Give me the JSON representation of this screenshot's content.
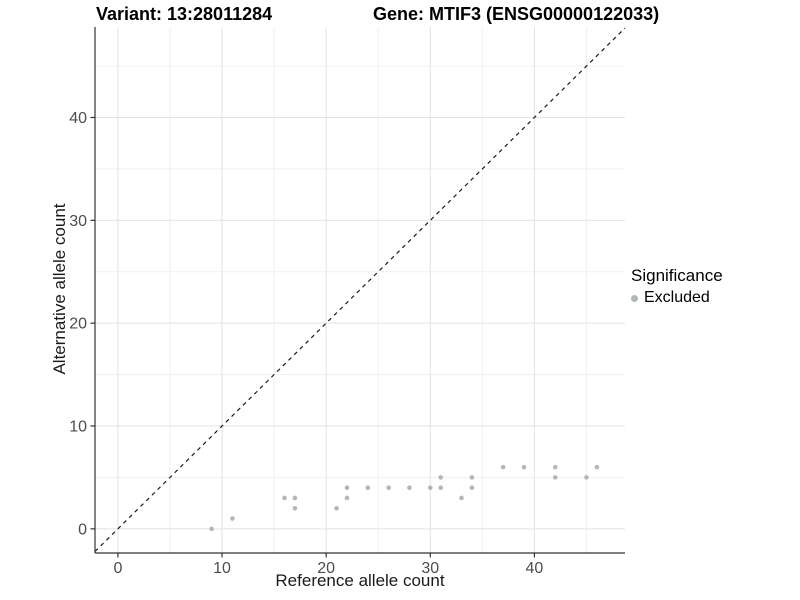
{
  "header": {
    "variant_title": "Variant: 13:28011284",
    "gene_title": "Gene: MTIF3 (ENSG00000122033)"
  },
  "chart_data": {
    "type": "scatter",
    "xlabel": "Reference allele count",
    "ylabel": "Alternative allele count",
    "xlim": [
      -2.2,
      48.7
    ],
    "ylim": [
      -2.35,
      48.8
    ],
    "x_major_ticks": [
      0,
      10,
      20,
      30,
      40
    ],
    "y_major_ticks": [
      0,
      10,
      20,
      30,
      40
    ],
    "x_minor_ticks": [
      5,
      15,
      25,
      35,
      45
    ],
    "y_minor_ticks": [
      5,
      15,
      25,
      35,
      45
    ],
    "grid": "major+minor, light grey on white",
    "reference_line": {
      "type": "identity",
      "equation": "y = x",
      "style": "dashed",
      "color": "#1a1a1a"
    },
    "series": [
      {
        "name": "Excluded",
        "color": "#b3b7b9",
        "marker": "circle",
        "points": [
          [
            9,
            0
          ],
          [
            11,
            1
          ],
          [
            16,
            3
          ],
          [
            17,
            2
          ],
          [
            17,
            3
          ],
          [
            21,
            2
          ],
          [
            22,
            3
          ],
          [
            22,
            4
          ],
          [
            24,
            4
          ],
          [
            26,
            4
          ],
          [
            28,
            4
          ],
          [
            30,
            4
          ],
          [
            31,
            4
          ],
          [
            31,
            5
          ],
          [
            33,
            3
          ],
          [
            34,
            4
          ],
          [
            34,
            5
          ],
          [
            37,
            6
          ],
          [
            39,
            6
          ],
          [
            42,
            5
          ],
          [
            42,
            6
          ],
          [
            45,
            5
          ],
          [
            46,
            6
          ]
        ]
      }
    ],
    "legend": {
      "position": "right",
      "title": "Significance",
      "entries": [
        {
          "label": "Excluded",
          "color": "#b3b7b9"
        }
      ]
    }
  },
  "style": {
    "background": "#ffffff",
    "axis_line_color": "#333333",
    "tick_label_color": "#4d4d4d",
    "grid_major_color": "#e2e2e2",
    "grid_minor_color": "#f0f0f0",
    "title_color": "#000000"
  }
}
